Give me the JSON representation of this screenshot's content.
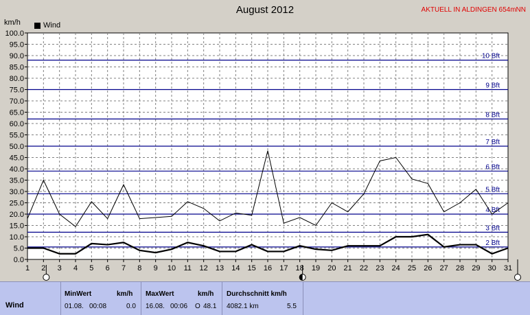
{
  "header": {
    "title": "August 2012",
    "station": "AKTUELL IN ALDINGEN 654mNN"
  },
  "chart_data": {
    "type": "line",
    "title": "August 2012",
    "ylabel": "km/h",
    "xlabel": "",
    "x": [
      1,
      2,
      3,
      4,
      5,
      6,
      7,
      8,
      9,
      10,
      11,
      12,
      13,
      14,
      15,
      16,
      17,
      18,
      19,
      20,
      21,
      22,
      23,
      24,
      25,
      26,
      27,
      28,
      29,
      30,
      31
    ],
    "ylim": [
      0,
      100
    ],
    "ytick_step": 5,
    "grid": true,
    "legend_position": "top-left",
    "series": [
      {
        "name": "Wind",
        "color": "#000000",
        "role": "max",
        "values": [
          18,
          35,
          20,
          14.5,
          25.5,
          18,
          33,
          18,
          18.5,
          19,
          25.5,
          22.5,
          17,
          20.5,
          19.5,
          48,
          16,
          18.5,
          15,
          25,
          21,
          29,
          43.5,
          45,
          35.5,
          33.5,
          21,
          25,
          31,
          20,
          25
        ]
      },
      {
        "name": "",
        "color": "#000000",
        "role": "average",
        "values": [
          5,
          5,
          2.5,
          2.5,
          7,
          6.5,
          7.5,
          4,
          3,
          4.5,
          7.5,
          6,
          3.5,
          3.5,
          6.5,
          3.5,
          3.5,
          6,
          4.5,
          4,
          6,
          6,
          6,
          10,
          10,
          11,
          5.5,
          6.5,
          6.5,
          2.5,
          5
        ]
      }
    ],
    "beaufort": [
      {
        "label": "2 Bft",
        "value": 5.5
      },
      {
        "label": "3 Bft",
        "value": 12
      },
      {
        "label": "4 Bft",
        "value": 20
      },
      {
        "label": "5 Bft",
        "value": 29
      },
      {
        "label": "6 Bft",
        "value": 39
      },
      {
        "label": "7 Bft",
        "value": 50
      },
      {
        "label": "8 Bft",
        "value": 62
      },
      {
        "label": "9 Bft",
        "value": 75
      },
      {
        "label": "10 Bft",
        "value": 88
      }
    ],
    "beaufort_color": "#00008b",
    "ytick_labels": [
      "0.0",
      "5.0",
      "10.0",
      "15.0",
      "20.0",
      "25.0",
      "30.0",
      "35.0",
      "40.0",
      "45.0",
      "50.0",
      "55.0",
      "60.0",
      "65.0",
      "70.0",
      "75.0",
      "80.0",
      "85.0",
      "90.0",
      "95.0",
      "100.0"
    ],
    "markers": [
      {
        "x": 2,
        "type": "open"
      },
      {
        "x": 18,
        "type": "half"
      },
      {
        "x": 31,
        "type": "open"
      }
    ]
  },
  "stats": {
    "row_label": "Wind",
    "min": {
      "header": "MinWert",
      "unit": "km/h",
      "date": "01.08.",
      "time": "00:08",
      "value": "0.0"
    },
    "max": {
      "header": "MaxWert",
      "unit": "km/h",
      "date": "16.08.",
      "time": "00:06",
      "dir": "O",
      "value": "48.1"
    },
    "avg": {
      "header": "Durchschnitt km/h",
      "distance": "4082.1 km",
      "value": "5.5"
    }
  }
}
